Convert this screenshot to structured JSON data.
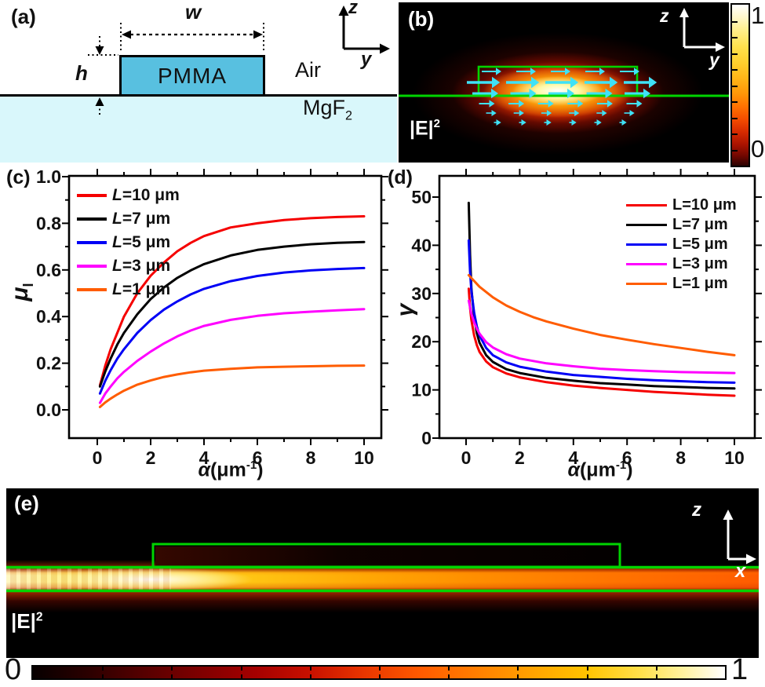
{
  "panel_a": {
    "label": "(a)",
    "core_label": "PMMA",
    "air_label": "Air",
    "substrate_label": "MgF",
    "substrate_label_sub": "2",
    "width_symbol": "w",
    "height_symbol": "h",
    "axis_vertical": "z",
    "axis_horizontal": "y",
    "core_color": "#58c0e0",
    "substrate_color": "#d9f7fb"
  },
  "panel_b": {
    "label": "(b)",
    "intensity_label": "|E|",
    "intensity_label_sup": "2",
    "axis_vertical": "z",
    "axis_horizontal": "y",
    "outline_color": "#00d400",
    "arrow_color": "#3fe2f7",
    "colorbar": {
      "max": "1",
      "min": "0",
      "tick_count": 9
    },
    "field_arrow_rows": [
      {
        "y": 88,
        "len": 18,
        "count": 5,
        "w": 2,
        "span": 176
      },
      {
        "y": 102,
        "len": 32,
        "count": 5,
        "w": 3.6,
        "span": 200
      },
      {
        "y": 116,
        "len": 24,
        "count": 5,
        "w": 3,
        "span": 194
      },
      {
        "y": 129,
        "len": 13,
        "count": 6,
        "w": 2,
        "span": 188
      },
      {
        "y": 141,
        "len": 7,
        "count": 6,
        "w": 1.6,
        "span": 176
      },
      {
        "y": 153,
        "len": 3,
        "count": 6,
        "w": 1.6,
        "span": 160
      }
    ]
  },
  "panel_e": {
    "label": "(e)",
    "intensity_label": "|E|",
    "intensity_label_sup": "2",
    "axis_vertical": "z",
    "axis_horizontal": "x",
    "outline_color": "#00d400",
    "colorbar": {
      "min": "0",
      "max": "1",
      "tick_count": 9
    }
  },
  "chart_data": [
    {
      "id": "c",
      "type": "line",
      "panel_label": "(c)",
      "xlabel": "α(μm⁻¹)",
      "ylabel": "μI",
      "xlabel_parts": {
        "var": "α",
        "pre": "(μm",
        "sup": "-1",
        "post": ")"
      },
      "ylabel_parts": {
        "main": "μ",
        "sub": "I"
      },
      "xlim": [
        0,
        10
      ],
      "ylim": [
        0.0,
        1.0
      ],
      "xticks": [
        0,
        2,
        4,
        6,
        8,
        10
      ],
      "xtick_labels": [
        "0",
        "2",
        "4",
        "6",
        "8",
        "10"
      ],
      "yticks": [
        0.0,
        0.2,
        0.4,
        0.6,
        0.8,
        1.0
      ],
      "ytick_labels": [
        "0.0",
        "0.2",
        "0.4",
        "0.6",
        "0.8",
        "1.0"
      ],
      "grid": false,
      "legend_position": "top-left",
      "series": [
        {
          "name": "L=10 μm",
          "legend_var": "L",
          "legend_rest": "=10 μm",
          "color": "#f50000",
          "points": [
            [
              0.1,
              0.105
            ],
            [
              0.3,
              0.19
            ],
            [
              0.5,
              0.26
            ],
            [
              0.75,
              0.33
            ],
            [
              1,
              0.4
            ],
            [
              1.5,
              0.5
            ],
            [
              2,
              0.575
            ],
            [
              2.5,
              0.632
            ],
            [
              3,
              0.68
            ],
            [
              3.5,
              0.716
            ],
            [
              4,
              0.745
            ],
            [
              5,
              0.782
            ],
            [
              6,
              0.8
            ],
            [
              7,
              0.814
            ],
            [
              8,
              0.822
            ],
            [
              9,
              0.827
            ],
            [
              10,
              0.83
            ]
          ]
        },
        {
          "name": "L=7 μm",
          "legend_var": "L",
          "legend_rest": "=7 μm",
          "color": "#000000",
          "points": [
            [
              0.1,
              0.1
            ],
            [
              0.3,
              0.165
            ],
            [
              0.5,
              0.22
            ],
            [
              0.75,
              0.28
            ],
            [
              1,
              0.33
            ],
            [
              1.5,
              0.41
            ],
            [
              2,
              0.475
            ],
            [
              2.5,
              0.525
            ],
            [
              3,
              0.566
            ],
            [
              3.5,
              0.598
            ],
            [
              4,
              0.625
            ],
            [
              5,
              0.662
            ],
            [
              6,
              0.686
            ],
            [
              7,
              0.7
            ],
            [
              8,
              0.71
            ],
            [
              9,
              0.716
            ],
            [
              10,
              0.72
            ]
          ]
        },
        {
          "name": "L=5 μm",
          "legend_var": "L",
          "legend_rest": "=5 μm",
          "color": "#0000f5",
          "points": [
            [
              0.1,
              0.07
            ],
            [
              0.3,
              0.125
            ],
            [
              0.5,
              0.17
            ],
            [
              0.75,
              0.22
            ],
            [
              1,
              0.26
            ],
            [
              1.5,
              0.33
            ],
            [
              2,
              0.385
            ],
            [
              2.5,
              0.43
            ],
            [
              3,
              0.465
            ],
            [
              3.5,
              0.495
            ],
            [
              4,
              0.519
            ],
            [
              5,
              0.552
            ],
            [
              6,
              0.574
            ],
            [
              7,
              0.589
            ],
            [
              8,
              0.598
            ],
            [
              9,
              0.604
            ],
            [
              10,
              0.608
            ]
          ]
        },
        {
          "name": "L=3 μm",
          "legend_var": "L",
          "legend_rest": "=3 μm",
          "color": "#ff00ff",
          "points": [
            [
              0.1,
              0.03
            ],
            [
              0.3,
              0.07
            ],
            [
              0.5,
              0.1
            ],
            [
              0.75,
              0.135
            ],
            [
              1,
              0.163
            ],
            [
              1.5,
              0.21
            ],
            [
              2,
              0.25
            ],
            [
              2.5,
              0.285
            ],
            [
              3,
              0.315
            ],
            [
              3.5,
              0.34
            ],
            [
              4,
              0.36
            ],
            [
              5,
              0.386
            ],
            [
              6,
              0.403
            ],
            [
              7,
              0.414
            ],
            [
              8,
              0.421
            ],
            [
              9,
              0.427
            ],
            [
              10,
              0.432
            ]
          ]
        },
        {
          "name": "L=1 μm",
          "legend_var": "L",
          "legend_rest": "=1 μm",
          "color": "#ff5c00",
          "points": [
            [
              0.1,
              0.012
            ],
            [
              0.3,
              0.032
            ],
            [
              0.5,
              0.048
            ],
            [
              0.75,
              0.066
            ],
            [
              1,
              0.082
            ],
            [
              1.5,
              0.108
            ],
            [
              2,
              0.126
            ],
            [
              2.5,
              0.141
            ],
            [
              3,
              0.152
            ],
            [
              3.5,
              0.161
            ],
            [
              4,
              0.168
            ],
            [
              5,
              0.176
            ],
            [
              6,
              0.182
            ],
            [
              7,
              0.185
            ],
            [
              8,
              0.187
            ],
            [
              9,
              0.189
            ],
            [
              10,
              0.19
            ]
          ]
        }
      ]
    },
    {
      "id": "d",
      "type": "line",
      "panel_label": "(d)",
      "xlabel": "α(μm⁻¹)",
      "ylabel": "γ",
      "xlabel_parts": {
        "var": "α",
        "pre": "(μm",
        "sup": "-1",
        "post": ")"
      },
      "ylabel_parts": {
        "main": "γ",
        "sub": ""
      },
      "xlim": [
        0,
        10
      ],
      "ylim": [
        0,
        50
      ],
      "xticks": [
        0,
        2,
        4,
        6,
        8,
        10
      ],
      "xtick_labels": [
        "0",
        "2",
        "4",
        "6",
        "8",
        "10"
      ],
      "yticks": [
        0,
        10,
        20,
        30,
        40,
        50
      ],
      "ytick_labels": [
        "0",
        "10",
        "20",
        "30",
        "40",
        "50"
      ],
      "grid": false,
      "legend_position": "top-right",
      "series": [
        {
          "name": "L=10 μm",
          "legend_var": "L",
          "legend_rest": "=10 μm",
          "color": "#f50000",
          "points": [
            [
              0.1,
              31
            ],
            [
              0.15,
              27
            ],
            [
              0.2,
              24.5
            ],
            [
              0.3,
              21.3
            ],
            [
              0.4,
              19.3
            ],
            [
              0.5,
              17.9
            ],
            [
              0.75,
              15.9
            ],
            [
              1,
              14.7
            ],
            [
              1.5,
              13.4
            ],
            [
              2,
              12.6
            ],
            [
              3,
              11.6
            ],
            [
              4,
              10.9
            ],
            [
              5,
              10.4
            ],
            [
              6,
              10.0
            ],
            [
              7,
              9.6
            ],
            [
              8,
              9.3
            ],
            [
              9,
              9.0
            ],
            [
              10,
              8.8
            ]
          ]
        },
        {
          "name": "L=7 μm",
          "legend_var": "L",
          "legend_rest": "=7 μm",
          "color": "#000000",
          "points": [
            [
              0.1,
              48.8
            ],
            [
              0.15,
              38
            ],
            [
              0.2,
              31
            ],
            [
              0.3,
              25
            ],
            [
              0.4,
              21.8
            ],
            [
              0.5,
              19.8
            ],
            [
              0.75,
              17.2
            ],
            [
              1,
              15.8
            ],
            [
              1.5,
              14.3
            ],
            [
              2,
              13.5
            ],
            [
              3,
              12.5
            ],
            [
              4,
              11.9
            ],
            [
              5,
              11.4
            ],
            [
              6,
              11.1
            ],
            [
              7,
              10.8
            ],
            [
              8,
              10.6
            ],
            [
              9,
              10.4
            ],
            [
              10,
              10.3
            ]
          ]
        },
        {
          "name": "L=5 μm",
          "legend_var": "L",
          "legend_rest": "=5 μm",
          "color": "#0000f5",
          "points": [
            [
              0.1,
              41
            ],
            [
              0.15,
              34.5
            ],
            [
              0.2,
              30.5
            ],
            [
              0.3,
              26
            ],
            [
              0.4,
              23.2
            ],
            [
              0.5,
              21.3
            ],
            [
              0.75,
              18.7
            ],
            [
              1,
              17.2
            ],
            [
              1.5,
              15.7
            ],
            [
              2,
              14.8
            ],
            [
              3,
              13.8
            ],
            [
              4,
              13.1
            ],
            [
              5,
              12.7
            ],
            [
              6,
              12.3
            ],
            [
              7,
              12.0
            ],
            [
              8,
              11.8
            ],
            [
              9,
              11.6
            ],
            [
              10,
              11.5
            ]
          ]
        },
        {
          "name": "L=3 μm",
          "legend_var": "L",
          "legend_rest": "=3 μm",
          "color": "#ff00ff",
          "points": [
            [
              0.1,
              28.5
            ],
            [
              0.2,
              25.8
            ],
            [
              0.3,
              24
            ],
            [
              0.4,
              22.7
            ],
            [
              0.5,
              21.7
            ],
            [
              0.75,
              19.9
            ],
            [
              1,
              18.8
            ],
            [
              1.5,
              17.4
            ],
            [
              2,
              16.5
            ],
            [
              3,
              15.5
            ],
            [
              4,
              14.9
            ],
            [
              5,
              14.4
            ],
            [
              6,
              14.1
            ],
            [
              7,
              13.9
            ],
            [
              8,
              13.7
            ],
            [
              9,
              13.6
            ],
            [
              10,
              13.5
            ]
          ]
        },
        {
          "name": "L=1 μm",
          "legend_var": "L",
          "legend_rest": "=1 μm",
          "color": "#ff5c00",
          "points": [
            [
              0.1,
              33.8
            ],
            [
              0.5,
              31.4
            ],
            [
              1,
              29.2
            ],
            [
              1.5,
              27.5
            ],
            [
              2,
              26.2
            ],
            [
              2.5,
              25.1
            ],
            [
              3,
              24.2
            ],
            [
              4,
              22.7
            ],
            [
              5,
              21.4
            ],
            [
              6,
              20.4
            ],
            [
              7,
              19.5
            ],
            [
              8,
              18.7
            ],
            [
              9,
              17.9
            ],
            [
              10,
              17.2
            ]
          ]
        }
      ]
    }
  ]
}
